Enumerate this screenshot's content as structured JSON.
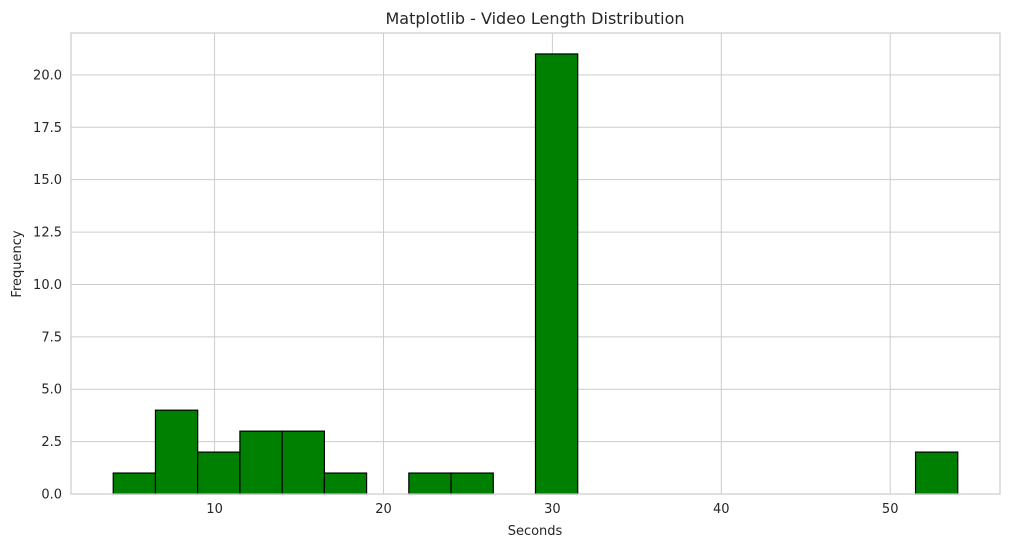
{
  "chart_data": {
    "type": "bar",
    "title": "Matplotlib - Video Length Distribution",
    "xlabel": "Seconds",
    "ylabel": "Frequency",
    "bar_color": "#008000",
    "edge_color": "#000000",
    "grid": true,
    "xlim": [
      1.5,
      56.5
    ],
    "ylim": [
      0,
      22.0
    ],
    "xticks": [
      10,
      20,
      30,
      40,
      50
    ],
    "xtick_labels": [
      "10",
      "20",
      "30",
      "40",
      "50"
    ],
    "yticks": [
      0,
      2.5,
      5,
      7.5,
      10,
      12.5,
      15,
      17.5,
      20
    ],
    "ytick_labels": [
      "0.0",
      "2.5",
      "5.0",
      "7.5",
      "10.0",
      "12.5",
      "15.0",
      "17.5",
      "20.0"
    ],
    "bins": [
      {
        "x0": 4.0,
        "x1": 6.5,
        "count": 1
      },
      {
        "x0": 6.5,
        "x1": 9.0,
        "count": 4
      },
      {
        "x0": 9.0,
        "x1": 11.5,
        "count": 2
      },
      {
        "x0": 11.5,
        "x1": 14.0,
        "count": 3
      },
      {
        "x0": 14.0,
        "x1": 16.5,
        "count": 3
      },
      {
        "x0": 16.5,
        "x1": 19.0,
        "count": 1
      },
      {
        "x0": 19.0,
        "x1": 21.5,
        "count": 0
      },
      {
        "x0": 21.5,
        "x1": 24.0,
        "count": 1
      },
      {
        "x0": 24.0,
        "x1": 26.5,
        "count": 1
      },
      {
        "x0": 26.5,
        "x1": 29.0,
        "count": 0
      },
      {
        "x0": 29.0,
        "x1": 31.5,
        "count": 21
      },
      {
        "x0": 31.5,
        "x1": 34.0,
        "count": 0
      },
      {
        "x0": 34.0,
        "x1": 36.5,
        "count": 0
      },
      {
        "x0": 36.5,
        "x1": 39.0,
        "count": 0
      },
      {
        "x0": 39.0,
        "x1": 41.5,
        "count": 0
      },
      {
        "x0": 41.5,
        "x1": 44.0,
        "count": 0
      },
      {
        "x0": 44.0,
        "x1": 46.5,
        "count": 0
      },
      {
        "x0": 46.5,
        "x1": 49.0,
        "count": 0
      },
      {
        "x0": 49.0,
        "x1": 51.5,
        "count": 0
      },
      {
        "x0": 51.5,
        "x1": 54.0,
        "count": 2
      }
    ]
  }
}
